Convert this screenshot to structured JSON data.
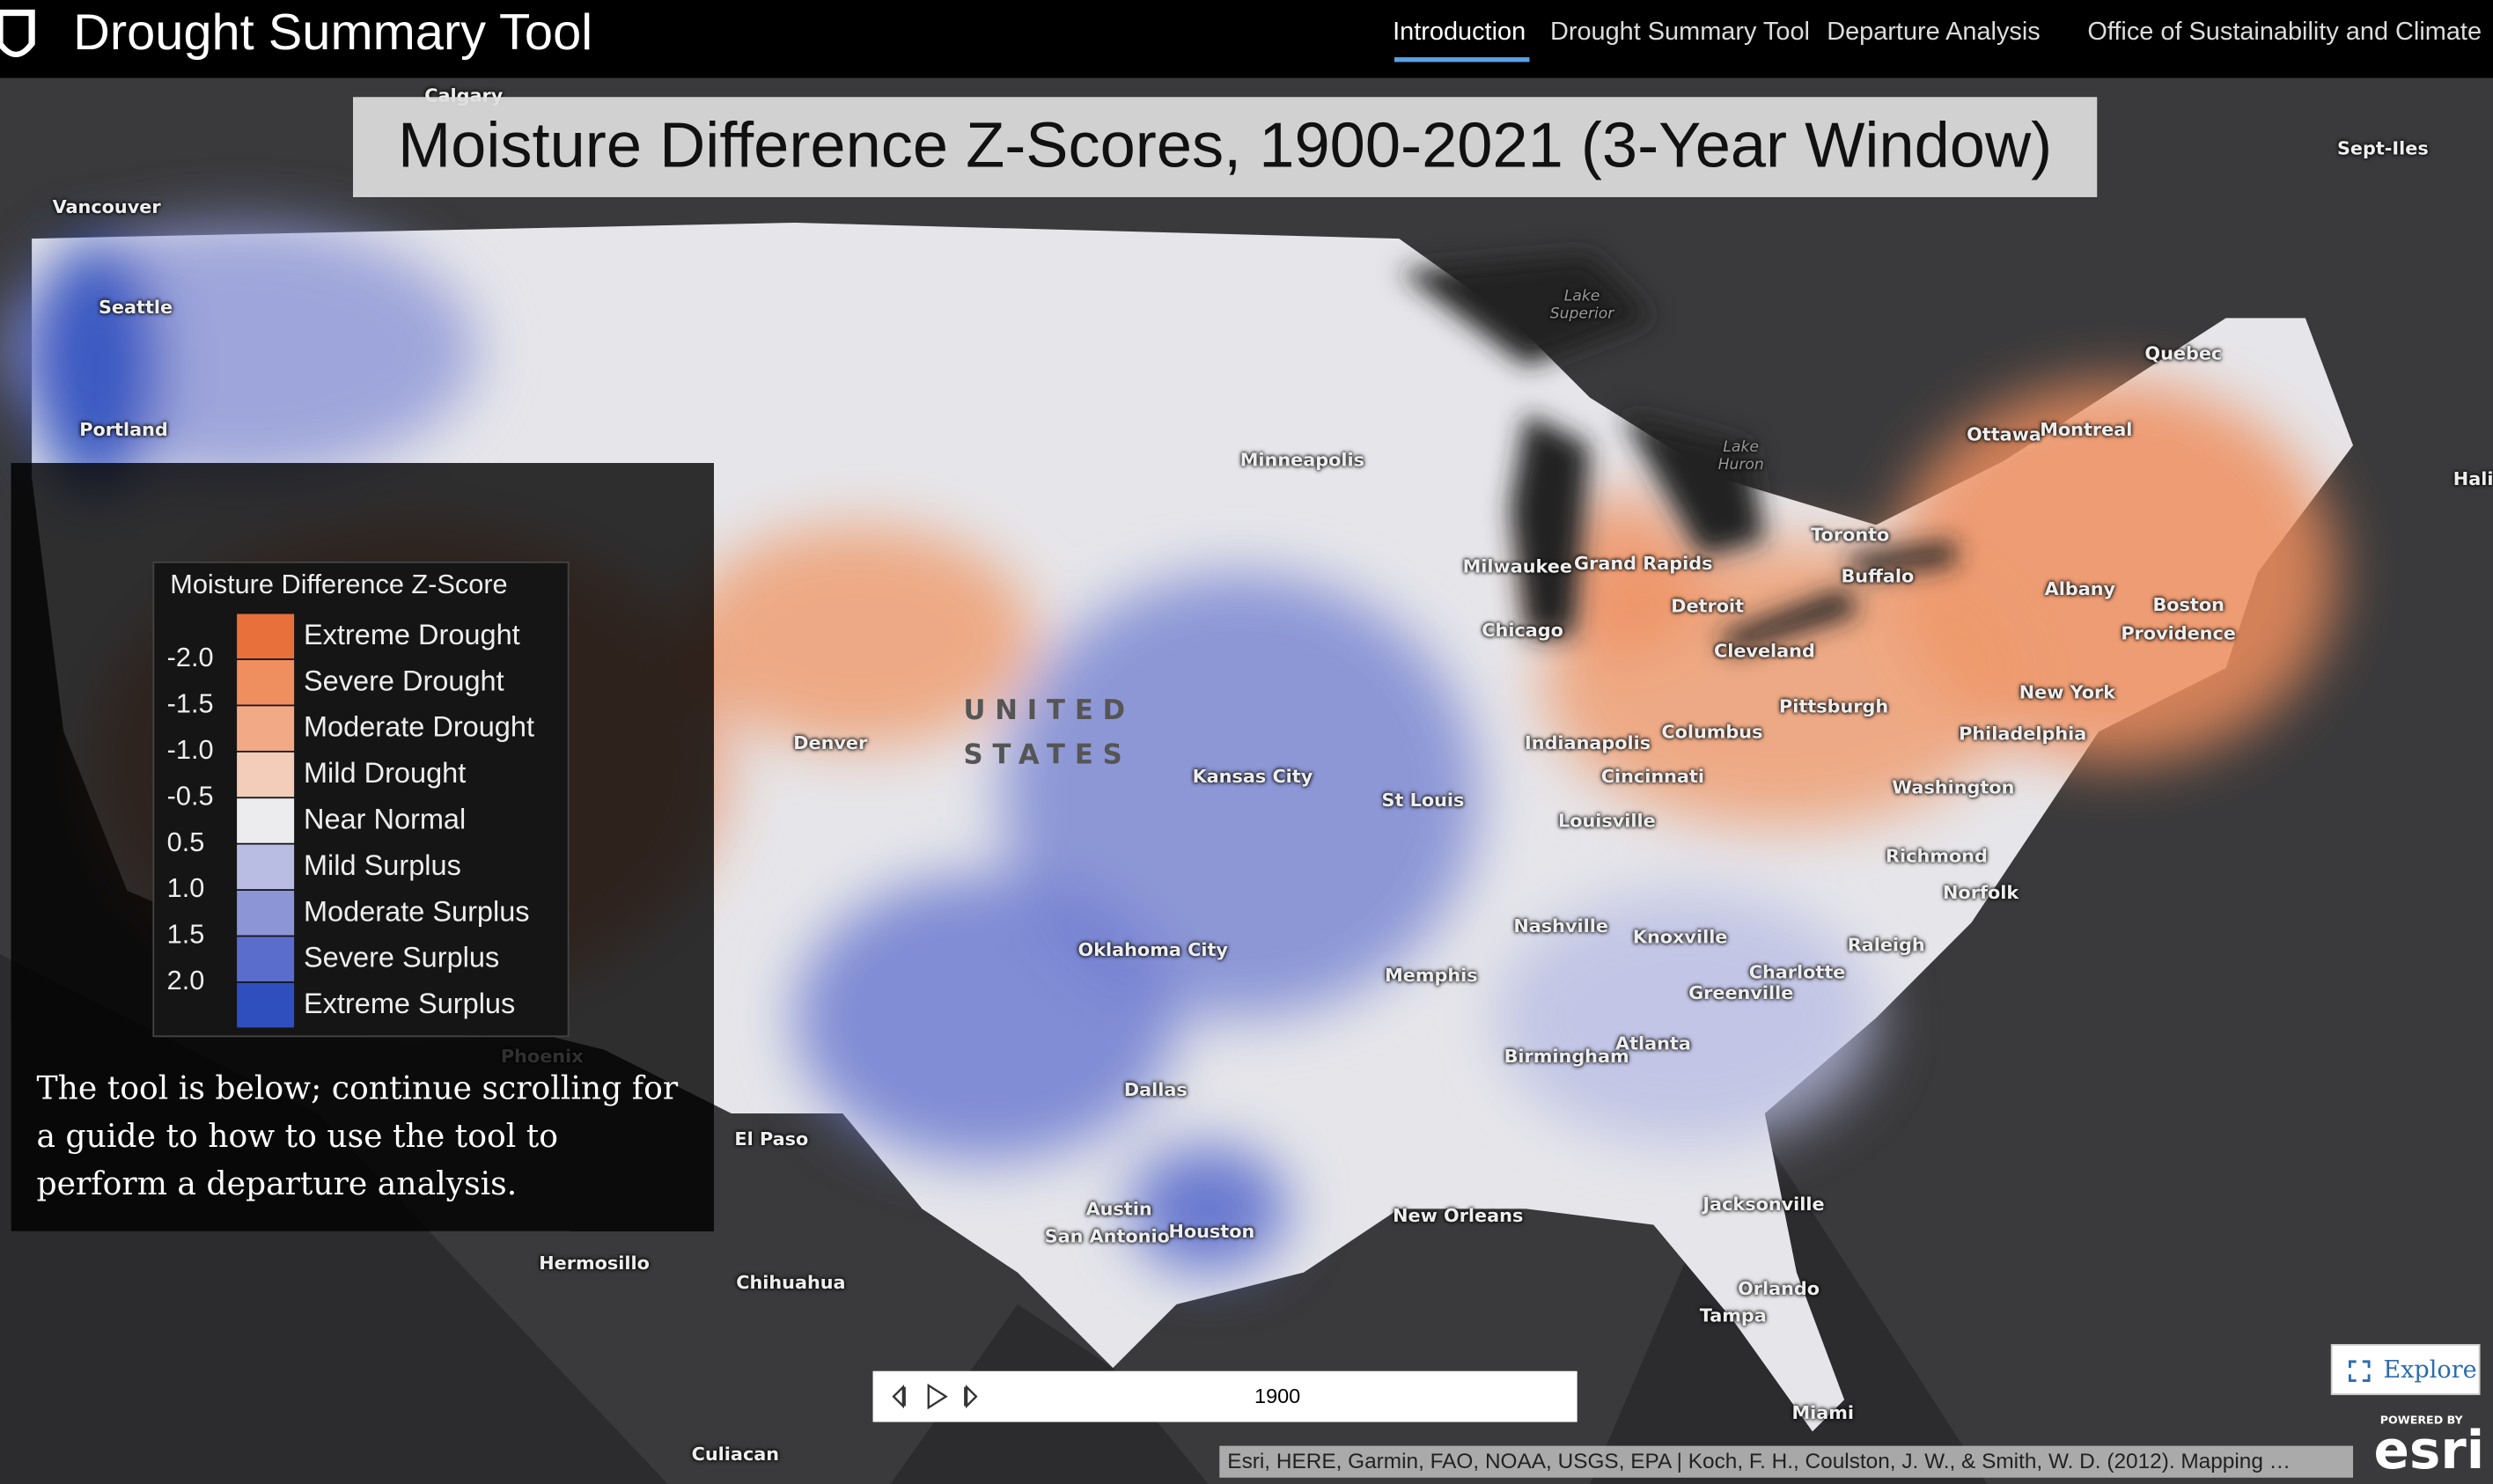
{
  "header": {
    "title": "Drought Summary Tool",
    "nav": [
      "Introduction",
      "Drought Summary Tool",
      "Departure Analysis",
      "Office of Sustainability and Climate"
    ]
  },
  "map": {
    "title": "Moisture Difference Z-Scores, 1900-2021 (3-Year Window)",
    "labels": [
      "Calgary",
      "Vancouver",
      "Seattle",
      "Portland",
      "Sept-Iles",
      "Quebec",
      "Ottawa",
      "Montreal",
      "Hali",
      "Toronto",
      "Buffalo",
      "Lake Superior",
      "Lake Huron",
      "Minneapolis",
      "Milwaukee",
      "Grand Rapids",
      "Detroit",
      "Chicago",
      "Cleveland",
      "Pittsburgh",
      "Albany",
      "Boston",
      "Providence",
      "New York",
      "Philadelphia",
      "Washington",
      "Denver",
      "UNITED STATES",
      "Kansas City",
      "St Louis",
      "Indianapolis",
      "Columbus",
      "Cincinnati",
      "Louisville",
      "Richmond",
      "Norfolk",
      "Nashville",
      "Knoxville",
      "Raleigh",
      "Charlotte",
      "Greenville",
      "Oklahoma City",
      "Memphis",
      "Atlanta",
      "Birmingham",
      "Phoenix",
      "Dallas",
      "El Paso",
      "Austin",
      "San Antonio",
      "Houston",
      "New Orleans",
      "Jacksonville",
      "Orlando",
      "Tampa",
      "Miami",
      "Hermosillo",
      "Chihuahua",
      "Culiacan"
    ],
    "attribution": "Esri, HERE, Garmin, FAO, NOAA, USGS, EPA | Koch, F. H., Coulston, J. W., & Smith, W. D. (2012). Mapping …",
    "explore": "Explore",
    "powered_by": "POWERED BY",
    "brand": "esri"
  },
  "legend": {
    "title": "Moisture Difference Z-Score",
    "items": [
      {
        "label": "Extreme Drought",
        "color": "#e8703a"
      },
      {
        "label": "Severe Drought",
        "color": "#ef8e5e"
      },
      {
        "label": "Moderate Drought",
        "color": "#f2a985"
      },
      {
        "label": "Mild Drought",
        "color": "#f3cdb9"
      },
      {
        "label": "Near Normal",
        "color": "#ececee"
      },
      {
        "label": "Mild Surplus",
        "color": "#b9bde4"
      },
      {
        "label": "Moderate Surplus",
        "color": "#8c95d6"
      },
      {
        "label": "Severe Surplus",
        "color": "#5b6dcc"
      },
      {
        "label": "Extreme Surplus",
        "color": "#2f4fbf"
      }
    ],
    "values": [
      "-2.0",
      "-1.5",
      "-1.0",
      "-0.5",
      "0.5",
      "1.0",
      "1.5",
      "2.0"
    ]
  },
  "panel": {
    "text": "The tool is below; continue scrolling for a guide to how to use the tool to perform a departure analysis."
  },
  "timeline": {
    "year": 1900
  }
}
